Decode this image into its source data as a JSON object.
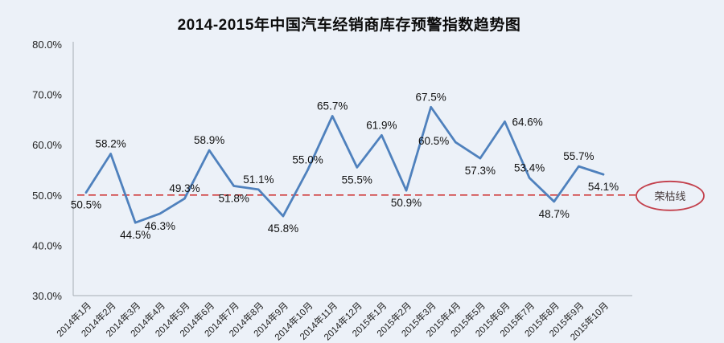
{
  "title": "2014-2015年中国汽车经销商库存预警指数趋势图",
  "colors": {
    "background": "#ecf1f8",
    "series_line": "#4f81bd",
    "threshold_line": "#d03a3a",
    "annotation_stroke": "#c3404c",
    "annotation_text": "#45393a",
    "axis": "#a6adb5",
    "tick_text": "#222222",
    "data_label_text": "#111111"
  },
  "chart_data": {
    "type": "line",
    "title": "2014-2015年中国汽车经销商库存预警指数趋势图",
    "categories": [
      "2014年1月",
      "2014年2月",
      "2014年3月",
      "2014年4月",
      "2014年5月",
      "2014年6月",
      "2014年7月",
      "2014年8月",
      "2014年9月",
      "2014年10月",
      "2014年11月",
      "2014年12月",
      "2015年1月",
      "2015年2月",
      "2015年3月",
      "2015年4月",
      "2015年5月",
      "2015年6月",
      "2015年7月",
      "2015年8月",
      "2015年9月",
      "2015年10月"
    ],
    "values": [
      50.5,
      58.2,
      44.5,
      46.3,
      49.3,
      58.9,
      51.8,
      51.1,
      45.8,
      55.0,
      65.7,
      55.5,
      61.9,
      50.9,
      67.5,
      60.5,
      57.3,
      64.6,
      53.4,
      48.7,
      55.7,
      54.1
    ],
    "data_labels": [
      "50.5%",
      "58.2%",
      "44.5%",
      "46.3%",
      "49.3%",
      "58.9%",
      "51.8%",
      "51.1%",
      "45.8%",
      "55.0%",
      "65.7%",
      "55.5%",
      "61.9%",
      "50.9%",
      "67.5%",
      "60.5%",
      "57.3%",
      "64.6%",
      "53.4%",
      "48.7%",
      "55.7%",
      "54.1%"
    ],
    "label_positions": [
      "below",
      "above",
      "below",
      "below",
      "above",
      "above",
      "below",
      "above",
      "below",
      "above",
      "above",
      "below",
      "above",
      "below",
      "above",
      "left",
      "below",
      "right",
      "above",
      "below",
      "above",
      "below"
    ],
    "xlabel": "",
    "ylabel": "",
    "ylim": [
      30,
      80
    ],
    "ytick_step": 10,
    "ytick_labels": [
      "30.0%",
      "40.0%",
      "50.0%",
      "60.0%",
      "70.0%",
      "80.0%"
    ],
    "grid": false,
    "legend": "none",
    "threshold": {
      "value": 50.0,
      "label": "荣枯线"
    }
  }
}
